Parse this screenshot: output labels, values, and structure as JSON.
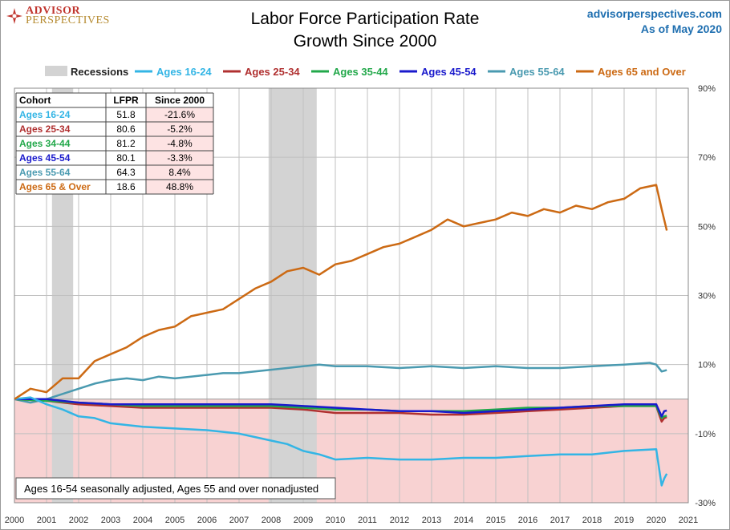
{
  "header": {
    "logo_line1": "ADVISOR",
    "logo_line2": "PERSPECTIVES",
    "title_line1": "Labor Force Participation Rate",
    "title_line2": "Growth Since 2000",
    "site": "advisorperspectives.com",
    "as_of": "As of May 2020"
  },
  "colors": {
    "recession": "#d3d3d3",
    "negative_zone": "#f8d2d2",
    "grid": "#c0c0c0",
    "ages_16_24": "#33b5e5",
    "ages_25_34": "#b03030",
    "ages_35_44": "#22a84a",
    "ages_45_54": "#1a1acc",
    "ages_55_64": "#4a9ab0",
    "ages_65_over": "#cc6a14"
  },
  "legend": {
    "recessions": "Recessions",
    "items": [
      {
        "label": "Ages 16-24",
        "color_key": "ages_16_24"
      },
      {
        "label": "Ages 25-34",
        "color_key": "ages_25_34"
      },
      {
        "label": "Ages 35-44",
        "color_key": "ages_35_44"
      },
      {
        "label": "Ages 45-54",
        "color_key": "ages_45_54"
      },
      {
        "label": "Ages 55-64",
        "color_key": "ages_55_64"
      },
      {
        "label": "Ages 65 and Over",
        "color_key": "ages_65_over"
      }
    ]
  },
  "table": {
    "headers": [
      "Cohort",
      "LFPR",
      "Since 2000"
    ],
    "rows": [
      {
        "cohort": "Ages 16-24",
        "lfpr": "51.8",
        "since": "-21.6%",
        "color_key": "ages_16_24"
      },
      {
        "cohort": "Ages 25-34",
        "lfpr": "80.6",
        "since": "-5.2%",
        "color_key": "ages_25_34"
      },
      {
        "cohort": "Ages 34-44",
        "lfpr": "81.2",
        "since": "-4.8%",
        "color_key": "ages_35_44"
      },
      {
        "cohort": "Ages 45-54",
        "lfpr": "80.1",
        "since": "-3.3%",
        "color_key": "ages_45_54"
      },
      {
        "cohort": "Ages 55-64",
        "lfpr": "64.3",
        "since": "8.4%",
        "color_key": "ages_55_64"
      },
      {
        "cohort": "Ages 65  & Over",
        "lfpr": "18.6",
        "since": "48.8%",
        "color_key": "ages_65_over"
      }
    ]
  },
  "note": "Ages 16-54 seasonally adjusted, Ages 55 and over nonadjusted",
  "chart_data": {
    "type": "line",
    "xlim": [
      2000,
      2021
    ],
    "ylim": [
      -30,
      90
    ],
    "x_ticks": [
      2000,
      2001,
      2002,
      2003,
      2004,
      2005,
      2006,
      2007,
      2008,
      2009,
      2010,
      2011,
      2012,
      2013,
      2014,
      2015,
      2016,
      2017,
      2018,
      2019,
      2020,
      2021
    ],
    "y_ticks": [
      {
        "value": 90,
        "label": "90%"
      },
      {
        "value": 70,
        "label": "70%"
      },
      {
        "value": 50,
        "label": "50%"
      },
      {
        "value": 30,
        "label": "30%"
      },
      {
        "value": 10,
        "label": "10%"
      },
      {
        "value": -10,
        "label": "-10%"
      },
      {
        "value": -30,
        "label": "-30%"
      }
    ],
    "grid": true,
    "recessions": [
      [
        2001.17,
        2001.83
      ],
      [
        2007.92,
        2009.42
      ]
    ],
    "series": [
      {
        "name": "Ages 55-64",
        "color_key": "ages_55_64",
        "x": [
          2000,
          2000.5,
          2001,
          2001.5,
          2002,
          2002.5,
          2003,
          2003.5,
          2004,
          2004.5,
          2005,
          2005.5,
          2006,
          2006.5,
          2007,
          2007.5,
          2008,
          2008.5,
          2009,
          2009.5,
          2010,
          2011,
          2012,
          2013,
          2014,
          2015,
          2016,
          2017,
          2018,
          2019,
          2019.8,
          2020,
          2020.17,
          2020.33
        ],
        "y": [
          0,
          -1,
          0,
          1.5,
          3,
          4.5,
          5.5,
          6,
          5.5,
          6.5,
          6,
          6.5,
          7,
          7.5,
          7.5,
          8,
          8.5,
          9,
          9.5,
          10,
          9.5,
          9.5,
          9,
          9.5,
          9,
          9.5,
          9,
          9,
          9.5,
          10,
          10.5,
          10,
          8,
          8.4
        ]
      },
      {
        "name": "Ages 25-34",
        "color_key": "ages_25_34",
        "x": [
          2000,
          2001,
          2002,
          2003,
          2004,
          2005,
          2006,
          2007,
          2008,
          2009,
          2010,
          2011,
          2012,
          2013,
          2014,
          2015,
          2016,
          2017,
          2018,
          2019,
          2020,
          2020.17,
          2020.25,
          2020.33
        ],
        "y": [
          0,
          -0.5,
          -1.5,
          -2,
          -2.5,
          -2.5,
          -2.5,
          -2.5,
          -2.5,
          -3,
          -4,
          -4,
          -4,
          -4.5,
          -4.5,
          -4,
          -3.5,
          -3,
          -2.5,
          -2,
          -2,
          -6.5,
          -5.5,
          -5.2
        ]
      },
      {
        "name": "Ages 35-44",
        "color_key": "ages_35_44",
        "x": [
          2000,
          2001,
          2002,
          2003,
          2004,
          2005,
          2006,
          2007,
          2008,
          2009,
          2010,
          2011,
          2012,
          2013,
          2014,
          2015,
          2016,
          2017,
          2018,
          2019,
          2020,
          2020.17,
          2020.25,
          2020.33
        ],
        "y": [
          0,
          -0.5,
          -1,
          -1.5,
          -2,
          -2,
          -2,
          -2,
          -2,
          -2.5,
          -3,
          -3,
          -3.5,
          -3.5,
          -3.5,
          -3,
          -2.5,
          -2.5,
          -2,
          -2,
          -2,
          -5.5,
          -5,
          -4.8
        ]
      },
      {
        "name": "Ages 45-54",
        "color_key": "ages_45_54",
        "x": [
          2000,
          2001,
          2002,
          2003,
          2004,
          2005,
          2006,
          2007,
          2008,
          2009,
          2010,
          2011,
          2012,
          2013,
          2014,
          2015,
          2016,
          2017,
          2018,
          2019,
          2020,
          2020.17,
          2020.25,
          2020.33
        ],
        "y": [
          0,
          0,
          -1,
          -1.5,
          -1.5,
          -1.5,
          -1.5,
          -1.5,
          -1.5,
          -2,
          -2.5,
          -3,
          -3.5,
          -3.5,
          -4,
          -3.5,
          -3,
          -2.5,
          -2,
          -1.5,
          -1.5,
          -5,
          -3.5,
          -3.3
        ]
      },
      {
        "name": "Ages 16-24",
        "color_key": "ages_16_24",
        "x": [
          2000,
          2000.5,
          2001,
          2001.5,
          2002,
          2002.5,
          2003,
          2004,
          2005,
          2006,
          2007,
          2007.5,
          2008,
          2008.5,
          2009,
          2009.5,
          2010,
          2011,
          2012,
          2013,
          2014,
          2015,
          2016,
          2017,
          2018,
          2019,
          2020,
          2020.17,
          2020.25,
          2020.33
        ],
        "y": [
          0,
          0.5,
          -1.5,
          -3,
          -5,
          -5.5,
          -7,
          -8,
          -8.5,
          -9,
          -10,
          -11,
          -12,
          -13,
          -15,
          -16,
          -17.5,
          -17,
          -17.5,
          -17.5,
          -17,
          -17,
          -16.5,
          -16,
          -16,
          -15,
          -14.5,
          -25,
          -23,
          -21.6
        ]
      },
      {
        "name": "Ages 65 and Over",
        "color_key": "ages_65_over",
        "x": [
          2000,
          2000.5,
          2001,
          2001.5,
          2002,
          2002.5,
          2003,
          2003.5,
          2004,
          2004.5,
          2005,
          2005.5,
          2006,
          2006.5,
          2007,
          2007.5,
          2008,
          2008.5,
          2009,
          2009.5,
          2010,
          2010.5,
          2011,
          2011.5,
          2012,
          2012.5,
          2013,
          2013.5,
          2014,
          2014.5,
          2015,
          2015.5,
          2016,
          2016.5,
          2017,
          2017.5,
          2018,
          2018.5,
          2019,
          2019.5,
          2020,
          2020.17,
          2020.33
        ],
        "y": [
          0,
          3,
          2,
          6,
          6,
          11,
          13,
          15,
          18,
          20,
          21,
          24,
          25,
          26,
          29,
          32,
          34,
          37,
          38,
          36,
          39,
          40,
          42,
          44,
          45,
          47,
          49,
          52,
          50,
          51,
          52,
          54,
          53,
          55,
          54,
          56,
          55,
          57,
          58,
          61,
          62,
          55,
          48.8
        ]
      }
    ]
  }
}
